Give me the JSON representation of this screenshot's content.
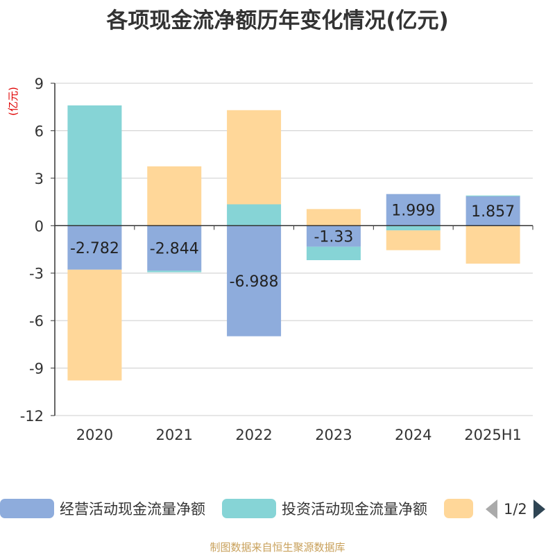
{
  "title": "各项现金流净额历年变化情况(亿元)",
  "source": "制图数据来自恒生聚源数据库",
  "colors": {
    "operating": "#8eacdc",
    "investing": "#86d4d6",
    "financing": "#ffd799",
    "axis": "#333333",
    "grid": "#cccccc",
    "yunit": "#e00000"
  },
  "legend": {
    "items": [
      {
        "label": "经营活动现金流量净额",
        "color": "#8eacdc"
      },
      {
        "label": "投资活动现金流量净额",
        "color": "#86d4d6"
      },
      {
        "label": "",
        "color": "#ffd799"
      }
    ],
    "page_text": "1/2",
    "prev_icon": "chevron-left-icon",
    "next_icon": "chevron-right-icon"
  },
  "chart_data": {
    "type": "bar",
    "stacked": true,
    "ylabel": "(亿元)",
    "ylim": [
      -12,
      9
    ],
    "yticks": [
      9,
      6,
      3,
      0,
      -3,
      -6,
      -9,
      -12
    ],
    "grid": true,
    "legend_position": "bottom",
    "categories": [
      "2020",
      "2021",
      "2022",
      "2023",
      "2024",
      "2025H1"
    ],
    "series": [
      {
        "name": "经营活动现金流量净额",
        "key": "operating",
        "values": [
          -2.782,
          -2.844,
          -6.988,
          -1.33,
          1.999,
          1.857
        ],
        "labels": [
          "-2.782",
          "-2.844",
          "-6.988",
          "-1.33",
          "1.999",
          "1.857"
        ]
      },
      {
        "name": "投资活动现金流量净额",
        "key": "investing",
        "values": [
          7.6,
          -0.1,
          1.35,
          -0.85,
          -0.3,
          0.05
        ]
      },
      {
        "key": "financing",
        "values": [
          -7.0,
          3.75,
          5.95,
          1.05,
          -1.25,
          -2.4
        ]
      }
    ]
  }
}
